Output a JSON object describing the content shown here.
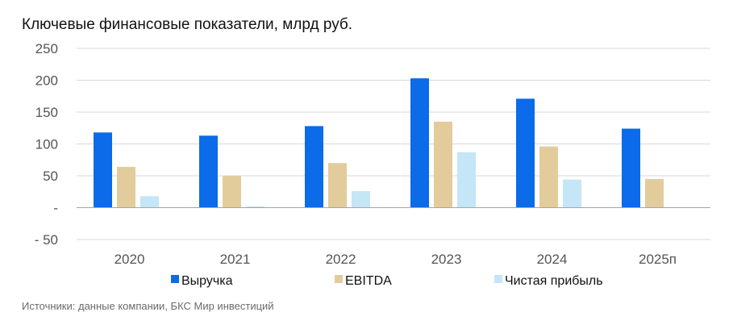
{
  "title": "Ключевые финансовые показатели, млрд руб.",
  "source": "Источники: данные компании, БКС Мир инвестиций",
  "colors": {
    "revenue": "#0b6be8",
    "ebitda": "#e3cc9c",
    "net_profit": "#c4e6f6",
    "grid": "#d9d9d9",
    "zero_line": "#a6a6a6"
  },
  "chart_data": {
    "type": "bar",
    "categories": [
      "2020",
      "2021",
      "2022",
      "2023",
      "2024",
      "2025п"
    ],
    "series": [
      {
        "name": "Выручка",
        "values": [
          118,
          113,
          128,
          203,
          171,
          124
        ]
      },
      {
        "name": "EBITDA",
        "values": [
          64,
          50,
          70,
          135,
          96,
          45
        ]
      },
      {
        "name": "Чистая прибыль",
        "values": [
          18,
          2,
          26,
          87,
          44,
          0
        ]
      }
    ],
    "ylim": [
      -50,
      250
    ],
    "yticks": [
      {
        "value": 250,
        "label": "250"
      },
      {
        "value": 200,
        "label": "200"
      },
      {
        "value": 150,
        "label": "150"
      },
      {
        "value": 100,
        "label": "100"
      },
      {
        "value": 50,
        "label": "50"
      },
      {
        "value": 0,
        "label": "-"
      },
      {
        "value": -50,
        "label": "- 50"
      }
    ],
    "grid": true,
    "legend_position": "bottom"
  }
}
